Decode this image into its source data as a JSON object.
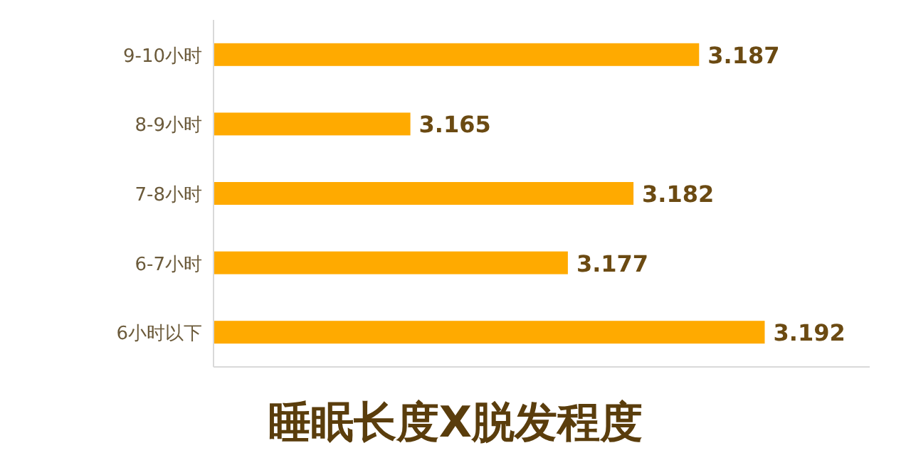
{
  "chart_data": {
    "type": "bar",
    "orientation": "horizontal",
    "title": "睡眠长度X脱发程度",
    "categories": [
      "9-10小时",
      "8-9小时",
      "7-8小时",
      "6-7小时",
      "6小时以下"
    ],
    "values": [
      3.187,
      3.165,
      3.182,
      3.177,
      3.192
    ],
    "color": "#ffaa00",
    "data_labels": true,
    "xlim": [
      3.15,
      3.2
    ]
  }
}
